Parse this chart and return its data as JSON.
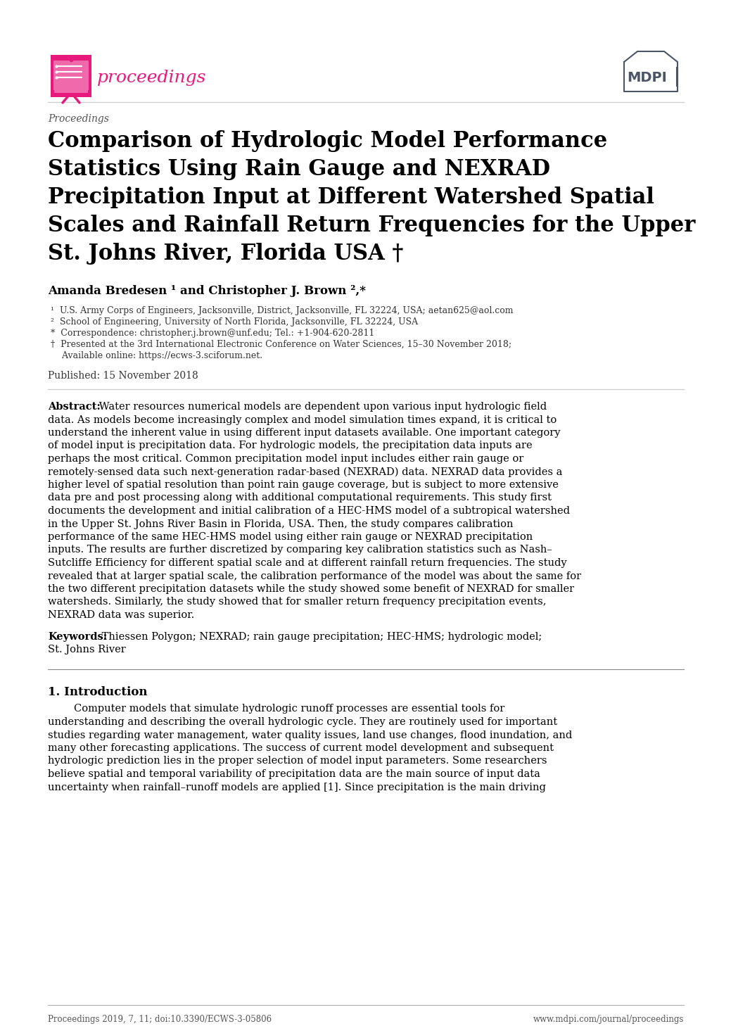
{
  "bg_color": "#ffffff",
  "journal_label": "Proceedings",
  "title_lines": [
    "Comparison of Hydrologic Model Performance",
    "Statistics Using Rain Gauge and NEXRAD",
    "Precipitation Input at Different Watershed Spatial",
    "Scales and Rainfall Return Frequencies for the Upper",
    "St. Johns River, Florida USA †"
  ],
  "authors": "Amanda Bredesen ¹ and Christopher J. Brown ²,*",
  "affil1": "¹  U.S. Army Corps of Engineers, Jacksonville, District, Jacksonville, FL 32224, USA; aetan625@aol.com",
  "affil2": "²  School of Engineering, University of North Florida, Jacksonville, FL 32224, USA",
  "affil3": "*  Correspondence: christopher.j.brown@unf.edu; Tel.: +1-904-620-2811",
  "affil4a": "†  Presented at the 3rd International Electronic Conference on Water Sciences, 15–30 November 2018;",
  "affil4b": "    Available online: https://ecws-3.sciforum.net.",
  "published": "Published: 15 November 2018",
  "abstract_label": "Abstract:",
  "abstract_lines": [
    "Abstract: Water resources numerical models are dependent upon various input hydrologic field",
    "data. As models become increasingly complex and model simulation times expand, it is critical to",
    "understand the inherent value in using different input datasets available. One important category",
    "of model input is precipitation data. For hydrologic models, the precipitation data inputs are",
    "perhaps the most critical. Common precipitation model input includes either rain gauge or",
    "remotely-sensed data such next-generation radar-based (NEXRAD) data. NEXRAD data provides a",
    "higher level of spatial resolution than point rain gauge coverage, but is subject to more extensive",
    "data pre and post processing along with additional computational requirements. This study first",
    "documents the development and initial calibration of a HEC-HMS model of a subtropical watershed",
    "in the Upper St. Johns River Basin in Florida, USA. Then, the study compares calibration",
    "performance of the same HEC-HMS model using either rain gauge or NEXRAD precipitation",
    "inputs. The results are further discretized by comparing key calibration statistics such as Nash–",
    "Sutcliffe Efficiency for different spatial scale and at different rainfall return frequencies. The study",
    "revealed that at larger spatial scale, the calibration performance of the model was about the same for",
    "the two different precipitation datasets while the study showed some benefit of NEXRAD for smaller",
    "watersheds. Similarly, the study showed that for smaller return frequency precipitation events,",
    "NEXRAD data was superior."
  ],
  "keywords_line1": "Keywords: Thiessen Polygon; NEXRAD; rain gauge precipitation; HEC-HMS; hydrologic model;",
  "keywords_line2": "St. Johns River",
  "section1_title": "1. Introduction",
  "section1_lines": [
    "        Computer models that simulate hydrologic runoff processes are essential tools for",
    "understanding and describing the overall hydrologic cycle. They are routinely used for important",
    "studies regarding water management, water quality issues, land use changes, flood inundation, and",
    "many other forecasting applications. The success of current model development and subsequent",
    "hydrologic prediction lies in the proper selection of model input parameters. Some researchers",
    "believe spatial and temporal variability of precipitation data are the main source of input data",
    "uncertainty when rainfall–runoff models are applied [1]. Since precipitation is the main driving"
  ],
  "footer_left": "Proceedings 2019, 7, 11; doi:10.3390/ECWS-3-05806",
  "footer_right": "www.mdpi.com/journal/proceedings",
  "pink": "#e8197d",
  "pink_light": "#f06aab",
  "mdpi_dark": "#4a5568",
  "text_dark": "#000000",
  "text_gray": "#555555",
  "line_gray": "#cccccc"
}
